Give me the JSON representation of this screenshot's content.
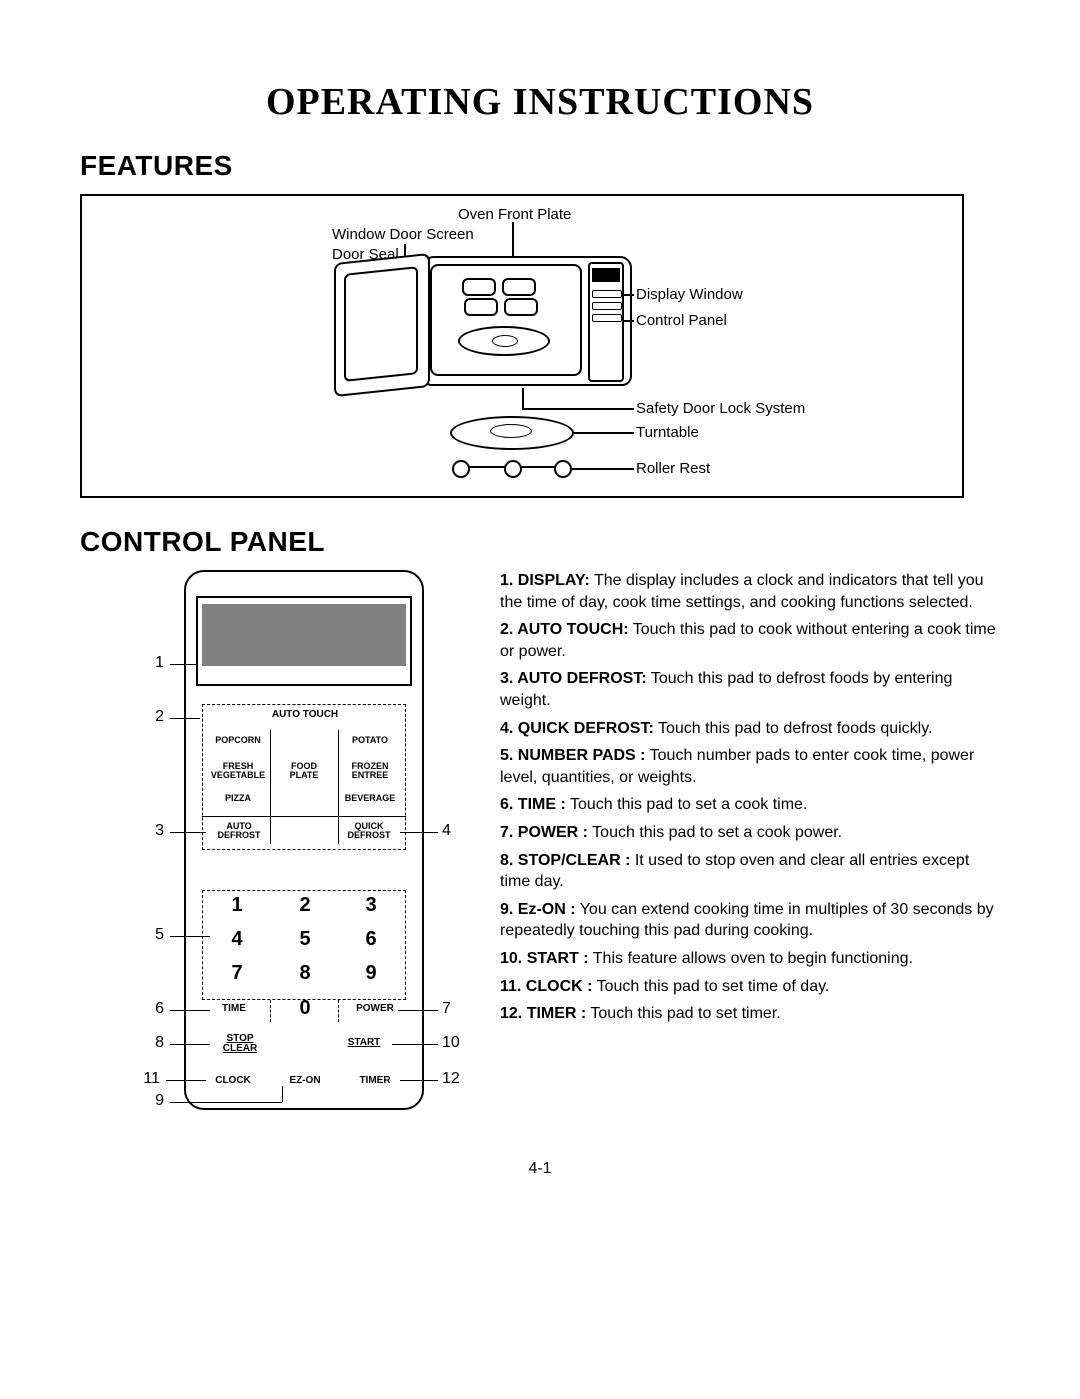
{
  "title": "OPERATING INSTRUCTIONS",
  "sections": {
    "features": "FEATURES",
    "control_panel": "CONTROL PANEL"
  },
  "features_labels": {
    "oven_front_plate": "Oven Front Plate",
    "window_door_screen": "Window Door Screen",
    "door_seal": "Door Seal",
    "display_window": "Display Window",
    "control_panel": "Control Panel",
    "safety_lock": "Safety Door Lock System",
    "turntable": "Turntable",
    "roller_rest": "Roller Rest"
  },
  "control_panel_diagram": {
    "auto_touch_title": "Auto Touch",
    "grid_labels": [
      [
        "POPCORN",
        "",
        "POTATO"
      ],
      [
        "FRESH\nVEGETABLE",
        "FOOD\nPLATE",
        "FROZEN\nENTREE"
      ],
      [
        "PIZZA",
        "",
        "BEVERAGE"
      ]
    ],
    "auto_defrost": "AUTO\nDEFROST",
    "quick_defrost": "QUICK\nDEFROST",
    "numpad": [
      "1",
      "2",
      "3",
      "4",
      "5",
      "6",
      "7",
      "8",
      "9",
      "",
      "0",
      ""
    ],
    "time": "TIME",
    "power": "POWER",
    "stop_clear": "STOP\nCLEAR",
    "start": "START",
    "clock": "CLOCK",
    "ez_on": "EZ-ON",
    "timer": "TIMER",
    "callout_left": {
      "1": "1",
      "2": "2",
      "3": "3",
      "5": "5",
      "6": "6",
      "8": "8",
      "11": "11",
      "9": "9"
    },
    "callout_right": {
      "4": "4",
      "7": "7",
      "10": "10",
      "12": "12"
    }
  },
  "list": [
    {
      "n": "1.",
      "name": "DISPLAY:",
      "text": " The display includes a clock and indicators that tell you the time of day, cook time settings, and cooking functions selected."
    },
    {
      "n": "2.",
      "name": "AUTO TOUCH:",
      "text": " Touch this pad to cook without entering a cook time or power."
    },
    {
      "n": "3.",
      "name": "AUTO DEFROST:",
      "text": " Touch this pad to defrost foods by entering weight."
    },
    {
      "n": "4.",
      "name": "QUICK DEFROST:",
      "text": " Touch this pad to defrost foods quickly."
    },
    {
      "n": "5.",
      "name": "NUMBER PADS :",
      "text": " Touch number pads to enter cook time, power level, quantities, or weights."
    },
    {
      "n": "6.",
      "name": "TIME :",
      "text": " Touch this pad to set a cook time."
    },
    {
      "n": "7.",
      "name": "POWER :",
      "text": " Touch this pad to set a cook power."
    },
    {
      "n": "8.",
      "name": "STOP/CLEAR :",
      "text": " It used to stop oven and clear all entries except time day."
    },
    {
      "n": "9.",
      "name": "Ez-ON :",
      "text": " You can extend cooking time in multiples of 30 seconds by repeatedly touching this pad during cooking."
    },
    {
      "n": "10.",
      "name": "START :",
      "text": " This feature allows oven to begin functioning."
    },
    {
      "n": "11.",
      "name": "CLOCK :",
      "text": " Touch this pad to set time of day."
    },
    {
      "n": "12.",
      "name": "TIMER :",
      "text": " Touch this pad to set timer."
    }
  ],
  "page_number": "4-1",
  "colors": {
    "text": "#000000",
    "background": "#ffffff",
    "display_fill": "#808080",
    "border": "#000000"
  },
  "fonts": {
    "title_family": "Times New Roman",
    "body_family": "Arial",
    "title_size_pt": 28,
    "section_size_pt": 21,
    "body_size_pt": 12,
    "panel_small_pt": 7
  }
}
